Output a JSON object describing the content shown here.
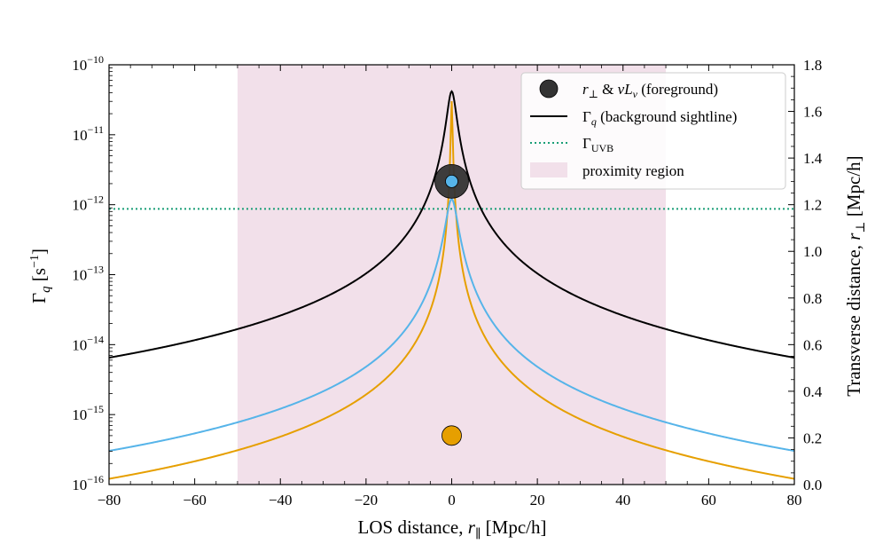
{
  "chart_data": {
    "type": "line",
    "title": "",
    "xlabel": "LOS distance, r∥ [Mpc/h]",
    "ylabel": "Γq [s⁻¹]",
    "y2label": "Transverse distance, r⊥ [Mpc/h]",
    "xlim": [
      -80,
      80
    ],
    "ylim_log10": [
      -16,
      -10
    ],
    "y2lim": [
      0.0,
      1.8
    ],
    "x_ticks": [
      -80,
      -60,
      -40,
      -20,
      0,
      20,
      40,
      60,
      80
    ],
    "x_tick_labels": [
      "−80",
      "−60",
      "−40",
      "−20",
      "0",
      "20",
      "40",
      "60",
      "80"
    ],
    "y_ticks_log10": [
      -16,
      -15,
      -14,
      -13,
      -12,
      -11,
      -10
    ],
    "y_tick_labels": [
      {
        "base": "10",
        "exp": "−16"
      },
      {
        "base": "10",
        "exp": "−15"
      },
      {
        "base": "10",
        "exp": "−14"
      },
      {
        "base": "10",
        "exp": "−13"
      },
      {
        "base": "10",
        "exp": "−12"
      },
      {
        "base": "10",
        "exp": "−11"
      },
      {
        "base": "10",
        "exp": "−10"
      }
    ],
    "y2_ticks": [
      0.0,
      0.2,
      0.4,
      0.6,
      0.8,
      1.0,
      1.2,
      1.4,
      1.6,
      1.8
    ],
    "y2_tick_labels": [
      "0.0",
      "0.2",
      "0.4",
      "0.6",
      "0.8",
      "1.0",
      "1.2",
      "1.4",
      "1.6",
      "1.8"
    ],
    "proximity_region": {
      "x_start": -50,
      "x_end": 50,
      "color": "#f2e0ea",
      "label": "proximity region"
    },
    "uvb": {
      "log10_value": -12.06,
      "color": "#1a9e77",
      "label": "Γ_UVB"
    },
    "series": [
      {
        "name": "Γq (background sightline)",
        "color": "#000000",
        "log10_peak": -10.38,
        "r_perp": 1.0
      },
      {
        "name": "orange sightline",
        "color": "#e69f00",
        "log10_peak": -10.52,
        "r_perp": 0.16
      },
      {
        "name": "blue sightline",
        "color": "#56b4e9",
        "log10_peak": -11.92,
        "r_perp": 1.27
      }
    ],
    "markers": [
      {
        "name": "foreground black",
        "x": 0,
        "r_perp": 1.3,
        "color": "#333333",
        "size": "large"
      },
      {
        "name": "foreground blue",
        "x": 0,
        "r_perp": 1.3,
        "color": "#56b4e9",
        "size": "small"
      },
      {
        "name": "foreground orange",
        "x": 0,
        "r_perp": 0.21,
        "color": "#e69f00",
        "size": "medium"
      }
    ],
    "legend": {
      "position": "top-right",
      "entries": [
        {
          "label": "r⊥ & νLν (foreground)",
          "kind": "marker",
          "color": "#333333"
        },
        {
          "label": "Γq (background sightline)",
          "kind": "line",
          "color": "#000000"
        },
        {
          "label": "ΓUVB",
          "kind": "dotted",
          "color": "#1a9e77"
        },
        {
          "label": "proximity region",
          "kind": "patch",
          "color": "#f2e0ea"
        }
      ]
    }
  }
}
